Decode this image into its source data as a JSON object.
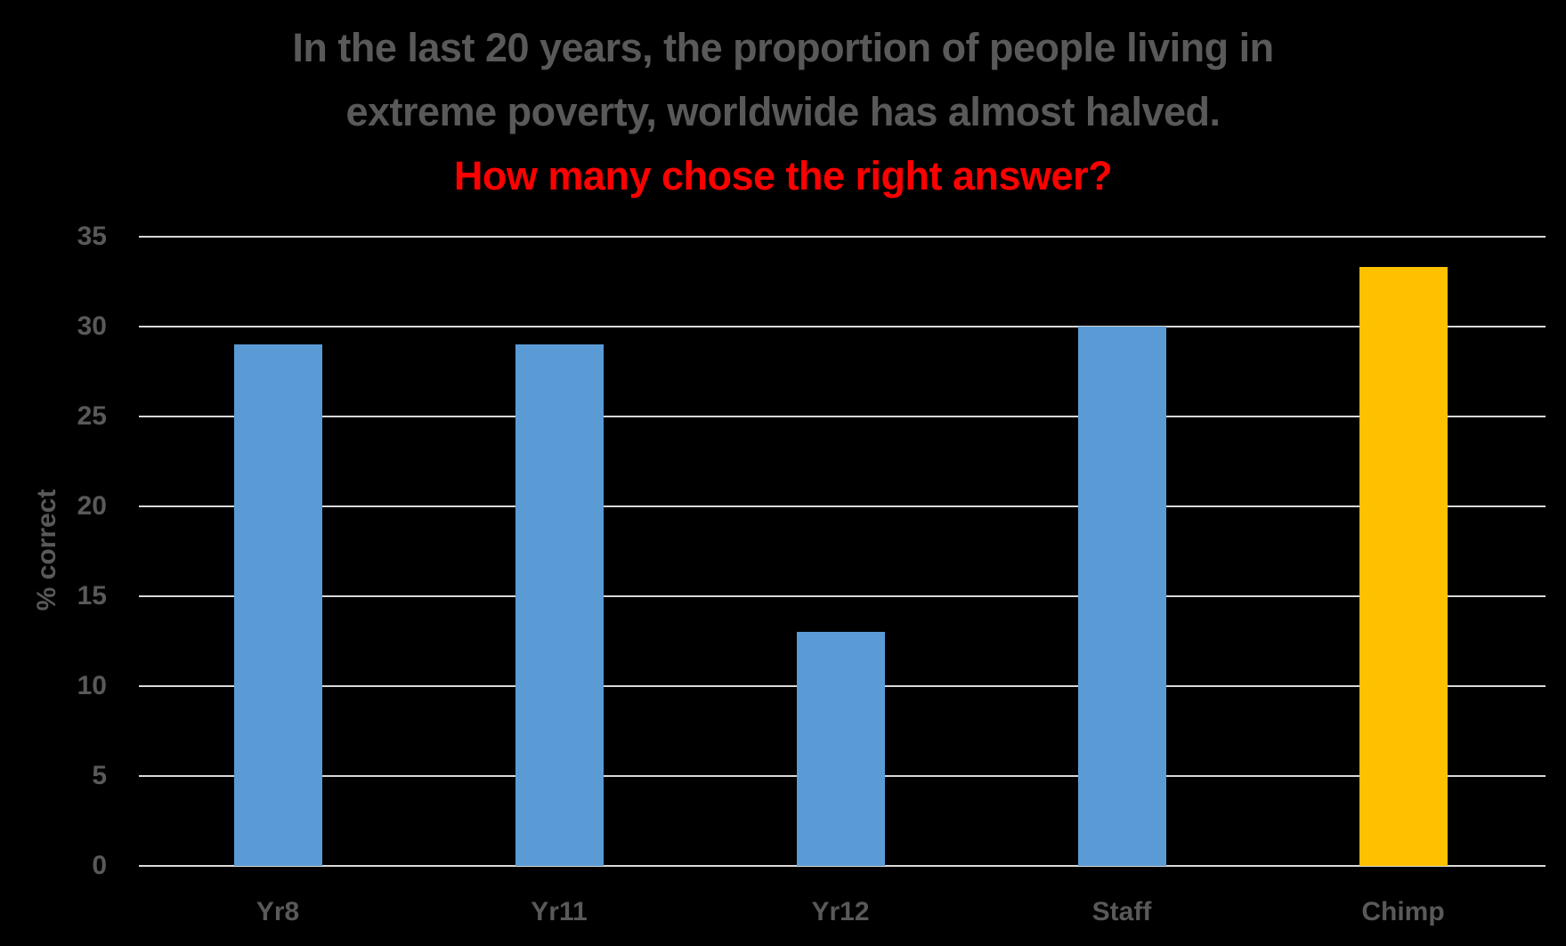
{
  "chart_data": {
    "type": "bar",
    "title": "In the last 20 years, the proportion of people living in extreme poverty, worldwide has almost halved.",
    "title_lines": [
      "In the last 20 years, the proportion of people living in",
      "extreme poverty, worldwide has almost halved."
    ],
    "subtitle": "How many chose the right answer?",
    "xlabel": "",
    "ylabel": "% correct",
    "ylim": [
      0,
      35
    ],
    "yticks": [
      0,
      5,
      10,
      15,
      20,
      25,
      30,
      35
    ],
    "grid": true,
    "legend": null,
    "categories": [
      "Yr8",
      "Yr11",
      "Yr12",
      "Staff",
      "Chimp"
    ],
    "values": [
      29,
      29,
      13,
      30,
      33.3
    ],
    "colors": [
      "#5B9BD5",
      "#5B9BD5",
      "#5B9BD5",
      "#5B9BD5",
      "#FFC000"
    ]
  },
  "colors": {
    "background": "#000000",
    "text": "#595959",
    "highlight_text": "#FF0000",
    "bar_primary": "#5B9BD5",
    "bar_highlight": "#FFC000",
    "gridline": "#D9D9D9"
  }
}
